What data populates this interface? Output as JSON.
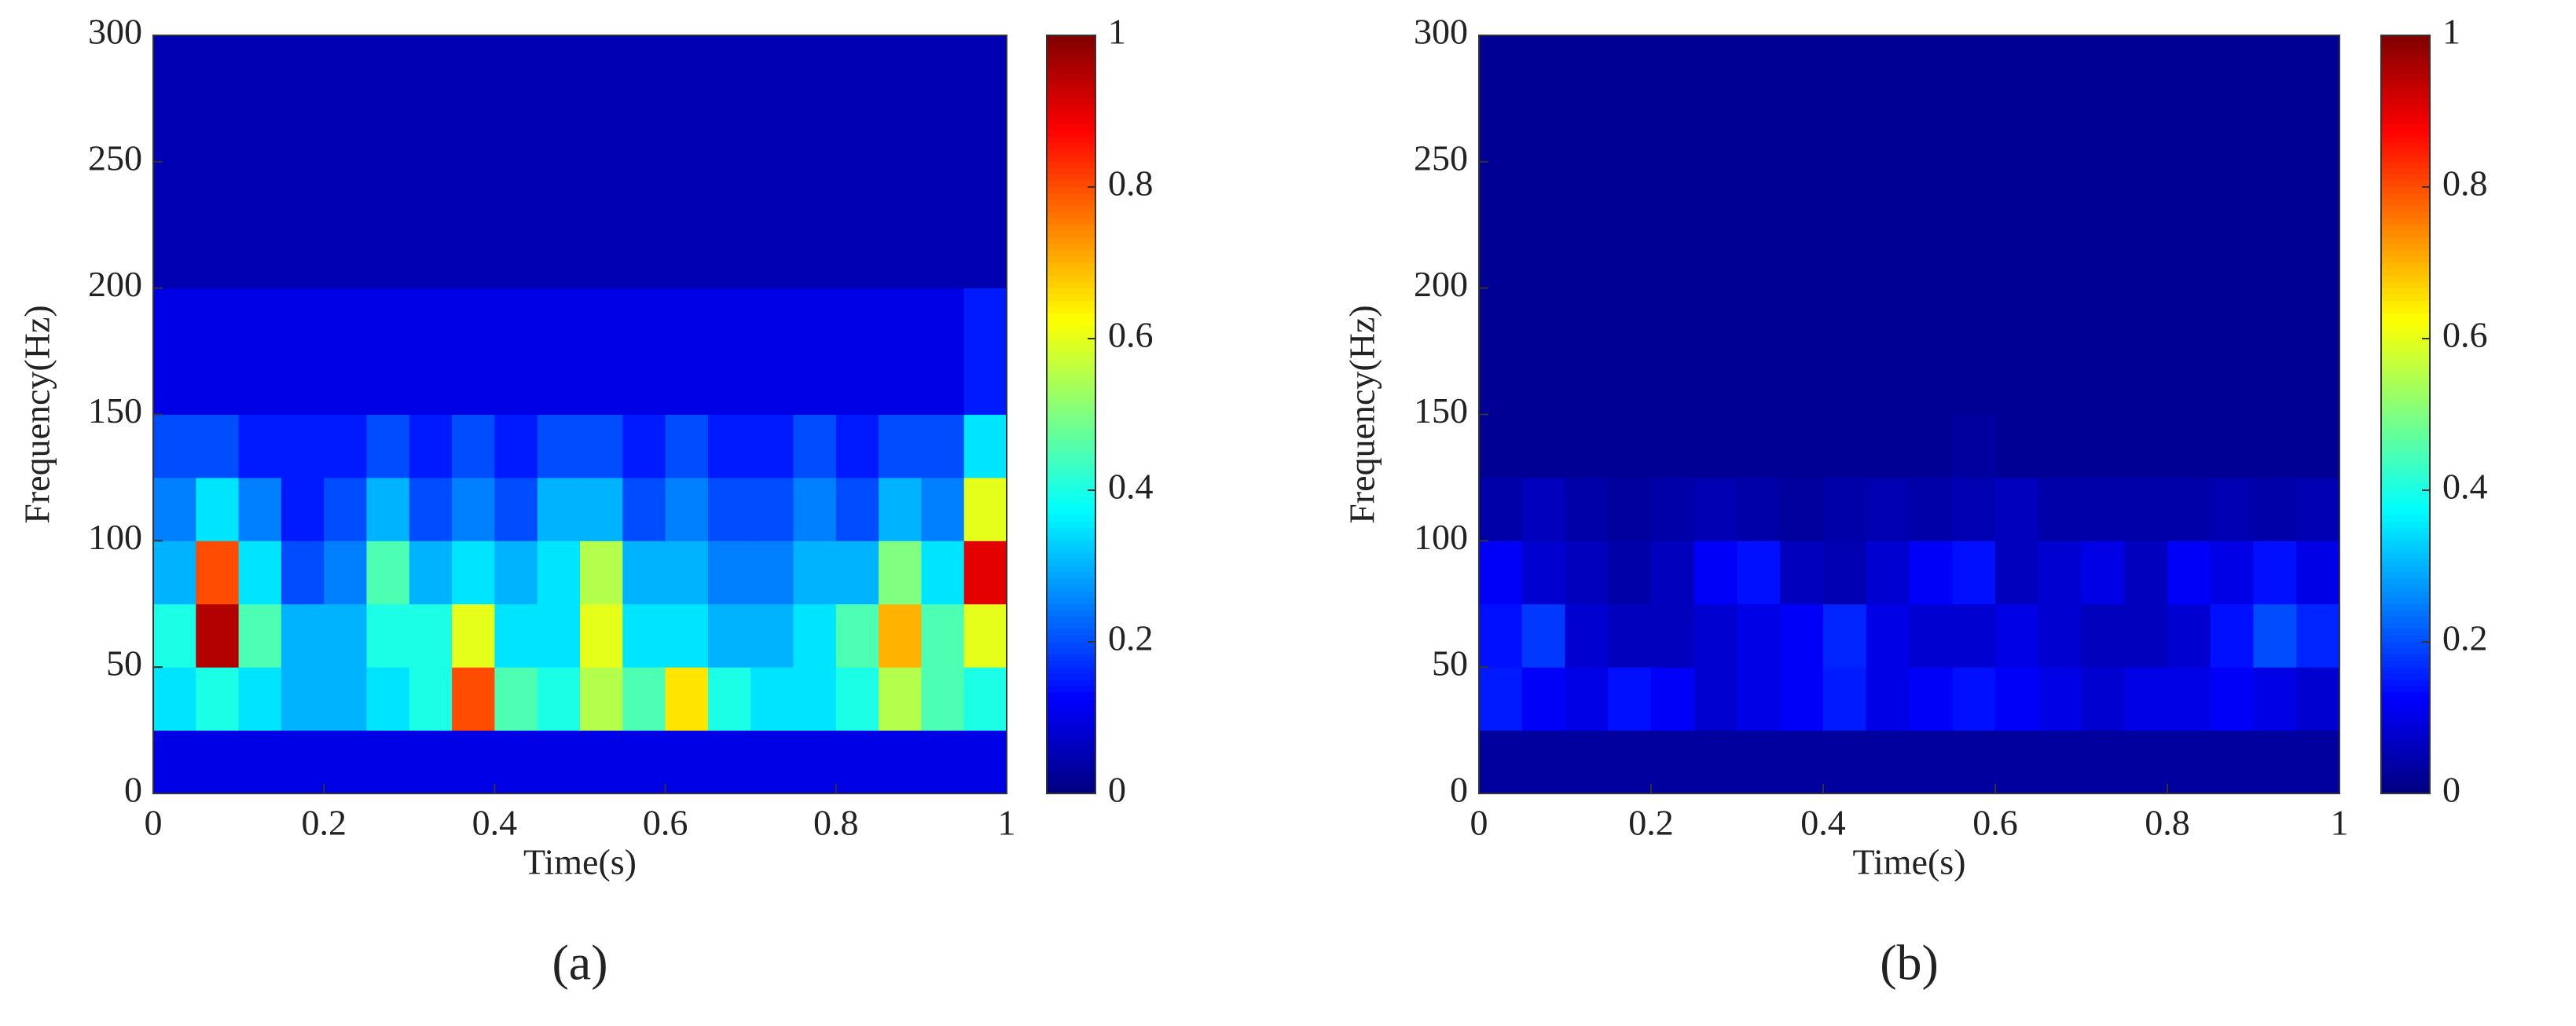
{
  "chart_data": [
    {
      "type": "heatmap",
      "label": "(a)",
      "xlabel": "Time(s)",
      "ylabel": "Frequency(Hz)",
      "xlim": [
        0,
        1
      ],
      "xticks": [
        0,
        0.2,
        0.4,
        0.6,
        0.8,
        1
      ],
      "ylim": [
        0,
        300
      ],
      "yticks": [
        0,
        50,
        100,
        150,
        200,
        250,
        300
      ],
      "clim": [
        0,
        1
      ],
      "cticks": [
        0,
        0.2,
        0.4,
        0.6,
        0.8,
        1
      ],
      "colormap": "jet",
      "xbins": [
        0,
        0.05,
        0.1,
        0.15,
        0.2,
        0.25,
        0.3,
        0.35,
        0.4,
        0.45,
        0.5,
        0.55,
        0.6,
        0.65,
        0.7,
        0.75,
        0.8,
        0.85,
        0.9,
        0.95,
        1
      ],
      "ybins": [
        0,
        25,
        50,
        75,
        100,
        125,
        150,
        200,
        300
      ],
      "z": [
        [
          0.1,
          0.1,
          0.1,
          0.1,
          0.1,
          0.1,
          0.1,
          0.1,
          0.1,
          0.1,
          0.1,
          0.1,
          0.1,
          0.1,
          0.1,
          0.1,
          0.1,
          0.1,
          0.1,
          0.1
        ],
        [
          0.35,
          0.4,
          0.35,
          0.3,
          0.3,
          0.35,
          0.4,
          0.8,
          0.45,
          0.4,
          0.55,
          0.45,
          0.65,
          0.4,
          0.35,
          0.35,
          0.4,
          0.55,
          0.45,
          0.4
        ],
        [
          0.4,
          0.95,
          0.45,
          0.3,
          0.3,
          0.4,
          0.4,
          0.6,
          0.35,
          0.35,
          0.6,
          0.35,
          0.35,
          0.3,
          0.3,
          0.35,
          0.45,
          0.7,
          0.45,
          0.6
        ],
        [
          0.3,
          0.8,
          0.35,
          0.2,
          0.25,
          0.45,
          0.3,
          0.35,
          0.3,
          0.35,
          0.55,
          0.3,
          0.3,
          0.25,
          0.25,
          0.3,
          0.3,
          0.5,
          0.35,
          0.9
        ],
        [
          0.25,
          0.35,
          0.25,
          0.15,
          0.2,
          0.3,
          0.2,
          0.25,
          0.2,
          0.3,
          0.3,
          0.2,
          0.25,
          0.2,
          0.2,
          0.25,
          0.2,
          0.3,
          0.25,
          0.6
        ],
        [
          0.2,
          0.2,
          0.15,
          0.15,
          0.15,
          0.2,
          0.15,
          0.2,
          0.15,
          0.2,
          0.2,
          0.15,
          0.2,
          0.15,
          0.15,
          0.2,
          0.15,
          0.2,
          0.2,
          0.35
        ],
        [
          0.1,
          0.1,
          0.1,
          0.1,
          0.1,
          0.1,
          0.1,
          0.1,
          0.1,
          0.1,
          0.1,
          0.1,
          0.1,
          0.1,
          0.1,
          0.1,
          0.1,
          0.1,
          0.1,
          0.15
        ],
        [
          0.05,
          0.05,
          0.05,
          0.05,
          0.05,
          0.05,
          0.05,
          0.05,
          0.05,
          0.05,
          0.05,
          0.05,
          0.05,
          0.05,
          0.05,
          0.05,
          0.05,
          0.05,
          0.05,
          0.05
        ]
      ]
    },
    {
      "type": "heatmap",
      "label": "(b)",
      "xlabel": "Time(s)",
      "ylabel": "Frequency(Hz)",
      "xlim": [
        0,
        1
      ],
      "xticks": [
        0,
        0.2,
        0.4,
        0.6,
        0.8,
        1
      ],
      "ylim": [
        0,
        300
      ],
      "yticks": [
        0,
        50,
        100,
        150,
        200,
        250,
        300
      ],
      "clim": [
        0,
        1
      ],
      "cticks": [
        0,
        0.2,
        0.4,
        0.6,
        0.8,
        1
      ],
      "colormap": "jet",
      "xbins": [
        0,
        0.05,
        0.1,
        0.15,
        0.2,
        0.25,
        0.3,
        0.35,
        0.4,
        0.45,
        0.5,
        0.55,
        0.6,
        0.65,
        0.7,
        0.75,
        0.8,
        0.85,
        0.9,
        0.95,
        1
      ],
      "ybins": [
        0,
        25,
        50,
        75,
        100,
        125,
        150,
        200,
        300
      ],
      "z": [
        [
          0.03,
          0.03,
          0.03,
          0.03,
          0.03,
          0.03,
          0.03,
          0.03,
          0.03,
          0.03,
          0.03,
          0.03,
          0.03,
          0.03,
          0.03,
          0.03,
          0.03,
          0.03,
          0.03,
          0.03
        ],
        [
          0.15,
          0.12,
          0.1,
          0.14,
          0.12,
          0.08,
          0.1,
          0.12,
          0.15,
          0.1,
          0.12,
          0.14,
          0.12,
          0.1,
          0.08,
          0.1,
          0.1,
          0.12,
          0.1,
          0.08
        ],
        [
          0.14,
          0.18,
          0.08,
          0.06,
          0.06,
          0.08,
          0.1,
          0.12,
          0.16,
          0.1,
          0.08,
          0.08,
          0.1,
          0.08,
          0.06,
          0.06,
          0.08,
          0.14,
          0.2,
          0.16
        ],
        [
          0.12,
          0.08,
          0.06,
          0.04,
          0.06,
          0.12,
          0.14,
          0.06,
          0.05,
          0.08,
          0.12,
          0.14,
          0.06,
          0.08,
          0.1,
          0.06,
          0.12,
          0.1,
          0.14,
          0.1
        ],
        [
          0.04,
          0.06,
          0.04,
          0.03,
          0.04,
          0.05,
          0.04,
          0.03,
          0.04,
          0.05,
          0.04,
          0.05,
          0.06,
          0.04,
          0.04,
          0.04,
          0.04,
          0.05,
          0.04,
          0.05
        ],
        [
          0.02,
          0.02,
          0.02,
          0.02,
          0.02,
          0.02,
          0.02,
          0.02,
          0.02,
          0.02,
          0.02,
          0.03,
          0.02,
          0.02,
          0.02,
          0.02,
          0.02,
          0.02,
          0.02,
          0.02
        ],
        [
          0.02,
          0.02,
          0.02,
          0.02,
          0.02,
          0.02,
          0.02,
          0.02,
          0.02,
          0.02,
          0.02,
          0.02,
          0.02,
          0.02,
          0.02,
          0.02,
          0.02,
          0.02,
          0.02,
          0.02
        ],
        [
          0.02,
          0.02,
          0.02,
          0.02,
          0.02,
          0.02,
          0.02,
          0.02,
          0.02,
          0.02,
          0.02,
          0.02,
          0.02,
          0.02,
          0.02,
          0.02,
          0.02,
          0.02,
          0.02,
          0.02
        ]
      ]
    }
  ]
}
